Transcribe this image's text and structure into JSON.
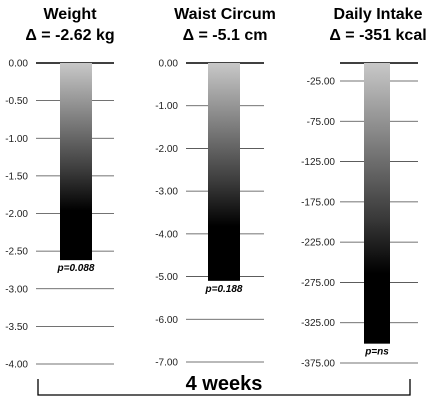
{
  "chart_data": [
    {
      "type": "bar",
      "title": "Weight",
      "delta_label": "Δ = -2.62 kg",
      "value": -2.62,
      "ylim": [
        -4.0,
        0.0
      ],
      "ticks": [
        0,
        -0.5,
        -1,
        -1.5,
        -2,
        -2.5,
        -3,
        -3.5,
        -4
      ],
      "tick_labels": [
        "0.00",
        "-0.50",
        "-1.00",
        "-1.50",
        "-2.00",
        "-2.50",
        "-3.00",
        "-3.50",
        "-4.00"
      ],
      "p_value": "p=0.088",
      "grid": true
    },
    {
      "type": "bar",
      "title": "Waist Circum",
      "delta_label": "Δ = -5.1 cm",
      "value": -5.1,
      "ylim": [
        -7.0,
        0.0
      ],
      "ticks": [
        0,
        -1,
        -2,
        -3,
        -4,
        -5,
        -6,
        -7
      ],
      "tick_labels": [
        "0.00",
        "-1.00",
        "-2.00",
        "-3.00",
        "-4.00",
        "-5.00",
        "-6.00",
        "-7.00"
      ],
      "p_value": "p=0.188",
      "grid": true
    },
    {
      "type": "bar",
      "title": "Daily Intake",
      "delta_label": "Δ = -351 kcal",
      "value": -351,
      "ylim": [
        -375,
        0
      ],
      "ticks": [
        -25,
        -75,
        -125,
        -175,
        -225,
        -275,
        -325,
        -375
      ],
      "tick_labels": [
        "-25.00",
        "-75.00",
        "-125.00",
        "-175.00",
        "-225.00",
        "-275.00",
        "-325.00",
        "-375.00"
      ],
      "p_value": "p=ns",
      "grid": true
    }
  ],
  "footer": {
    "label": "4 weeks"
  },
  "colors": {
    "bar_top": "#c8c8c8",
    "bar_bottom": "#000000",
    "grid": "#444444",
    "axis_top": "#000000"
  }
}
